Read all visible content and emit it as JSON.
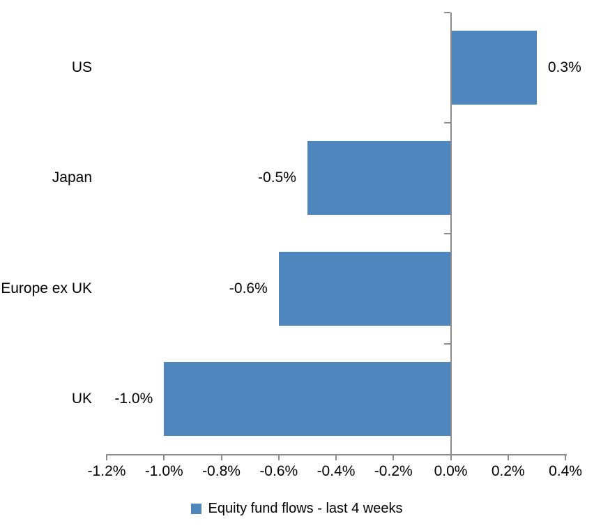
{
  "chart_data": {
    "type": "bar",
    "orientation": "horizontal",
    "title": "",
    "categories": [
      "US",
      "Japan",
      "Europe ex UK",
      "UK"
    ],
    "series": [
      {
        "name": "Equity fund flows - last 4 weeks",
        "values": [
          0.3,
          -0.5,
          -0.6,
          -1.0
        ],
        "value_labels": [
          "0.3%",
          "-0.5%",
          "-0.6%",
          "-1.0%"
        ]
      }
    ],
    "xlabel": "",
    "ylabel": "",
    "xlim": [
      -1.2,
      0.4
    ],
    "x_ticks": [
      -1.2,
      -1.0,
      -0.8,
      -0.6,
      -0.4,
      -0.2,
      0.0,
      0.2,
      0.4
    ],
    "x_tick_labels": [
      "-1.2%",
      "-1.0%",
      "-0.8%",
      "-0.6%",
      "-0.4%",
      "-0.2%",
      "0.0%",
      "0.2%",
      "0.4%"
    ],
    "grid": "off",
    "data_label_position": "outside-end",
    "legend_position": "bottom",
    "colors": {
      "bar": "#4F86BD",
      "axis": "#8C8C8C",
      "text": "#000000",
      "background": "#FFFFFF"
    }
  },
  "legend": {
    "label": "Equity fund flows - last 4 weeks",
    "swatch_color": "#4F86BD"
  }
}
